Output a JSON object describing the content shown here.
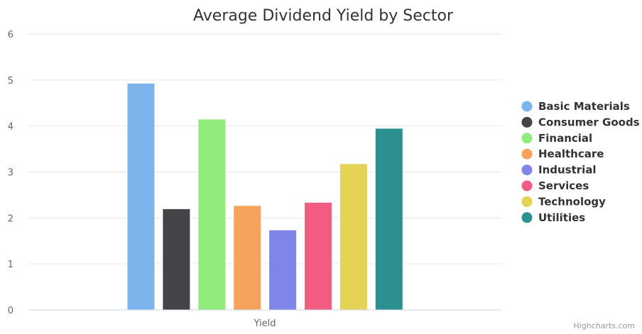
{
  "chart_data": {
    "type": "bar",
    "title": "Average Dividend Yield by Sector",
    "categories": [
      "Yield"
    ],
    "ylim": [
      0,
      6
    ],
    "yticks": [
      0,
      1,
      2,
      3,
      4,
      5,
      6
    ],
    "grid": true,
    "legend_position": "right",
    "series": [
      {
        "name": "Basic Materials",
        "values": [
          4.93
        ],
        "color": "#7cb5ec"
      },
      {
        "name": "Consumer Goods",
        "values": [
          2.2
        ],
        "color": "#434348"
      },
      {
        "name": "Financial",
        "values": [
          4.15
        ],
        "color": "#90ed7d"
      },
      {
        "name": "Healthcare",
        "values": [
          2.27
        ],
        "color": "#f7a35c"
      },
      {
        "name": "Industrial",
        "values": [
          1.74
        ],
        "color": "#8085e9"
      },
      {
        "name": "Services",
        "values": [
          2.34
        ],
        "color": "#f15c80"
      },
      {
        "name": "Technology",
        "values": [
          3.18
        ],
        "color": "#e4d354"
      },
      {
        "name": "Utilities",
        "values": [
          3.95
        ],
        "color": "#2b908f"
      }
    ]
  },
  "credits": "Highcharts.com"
}
